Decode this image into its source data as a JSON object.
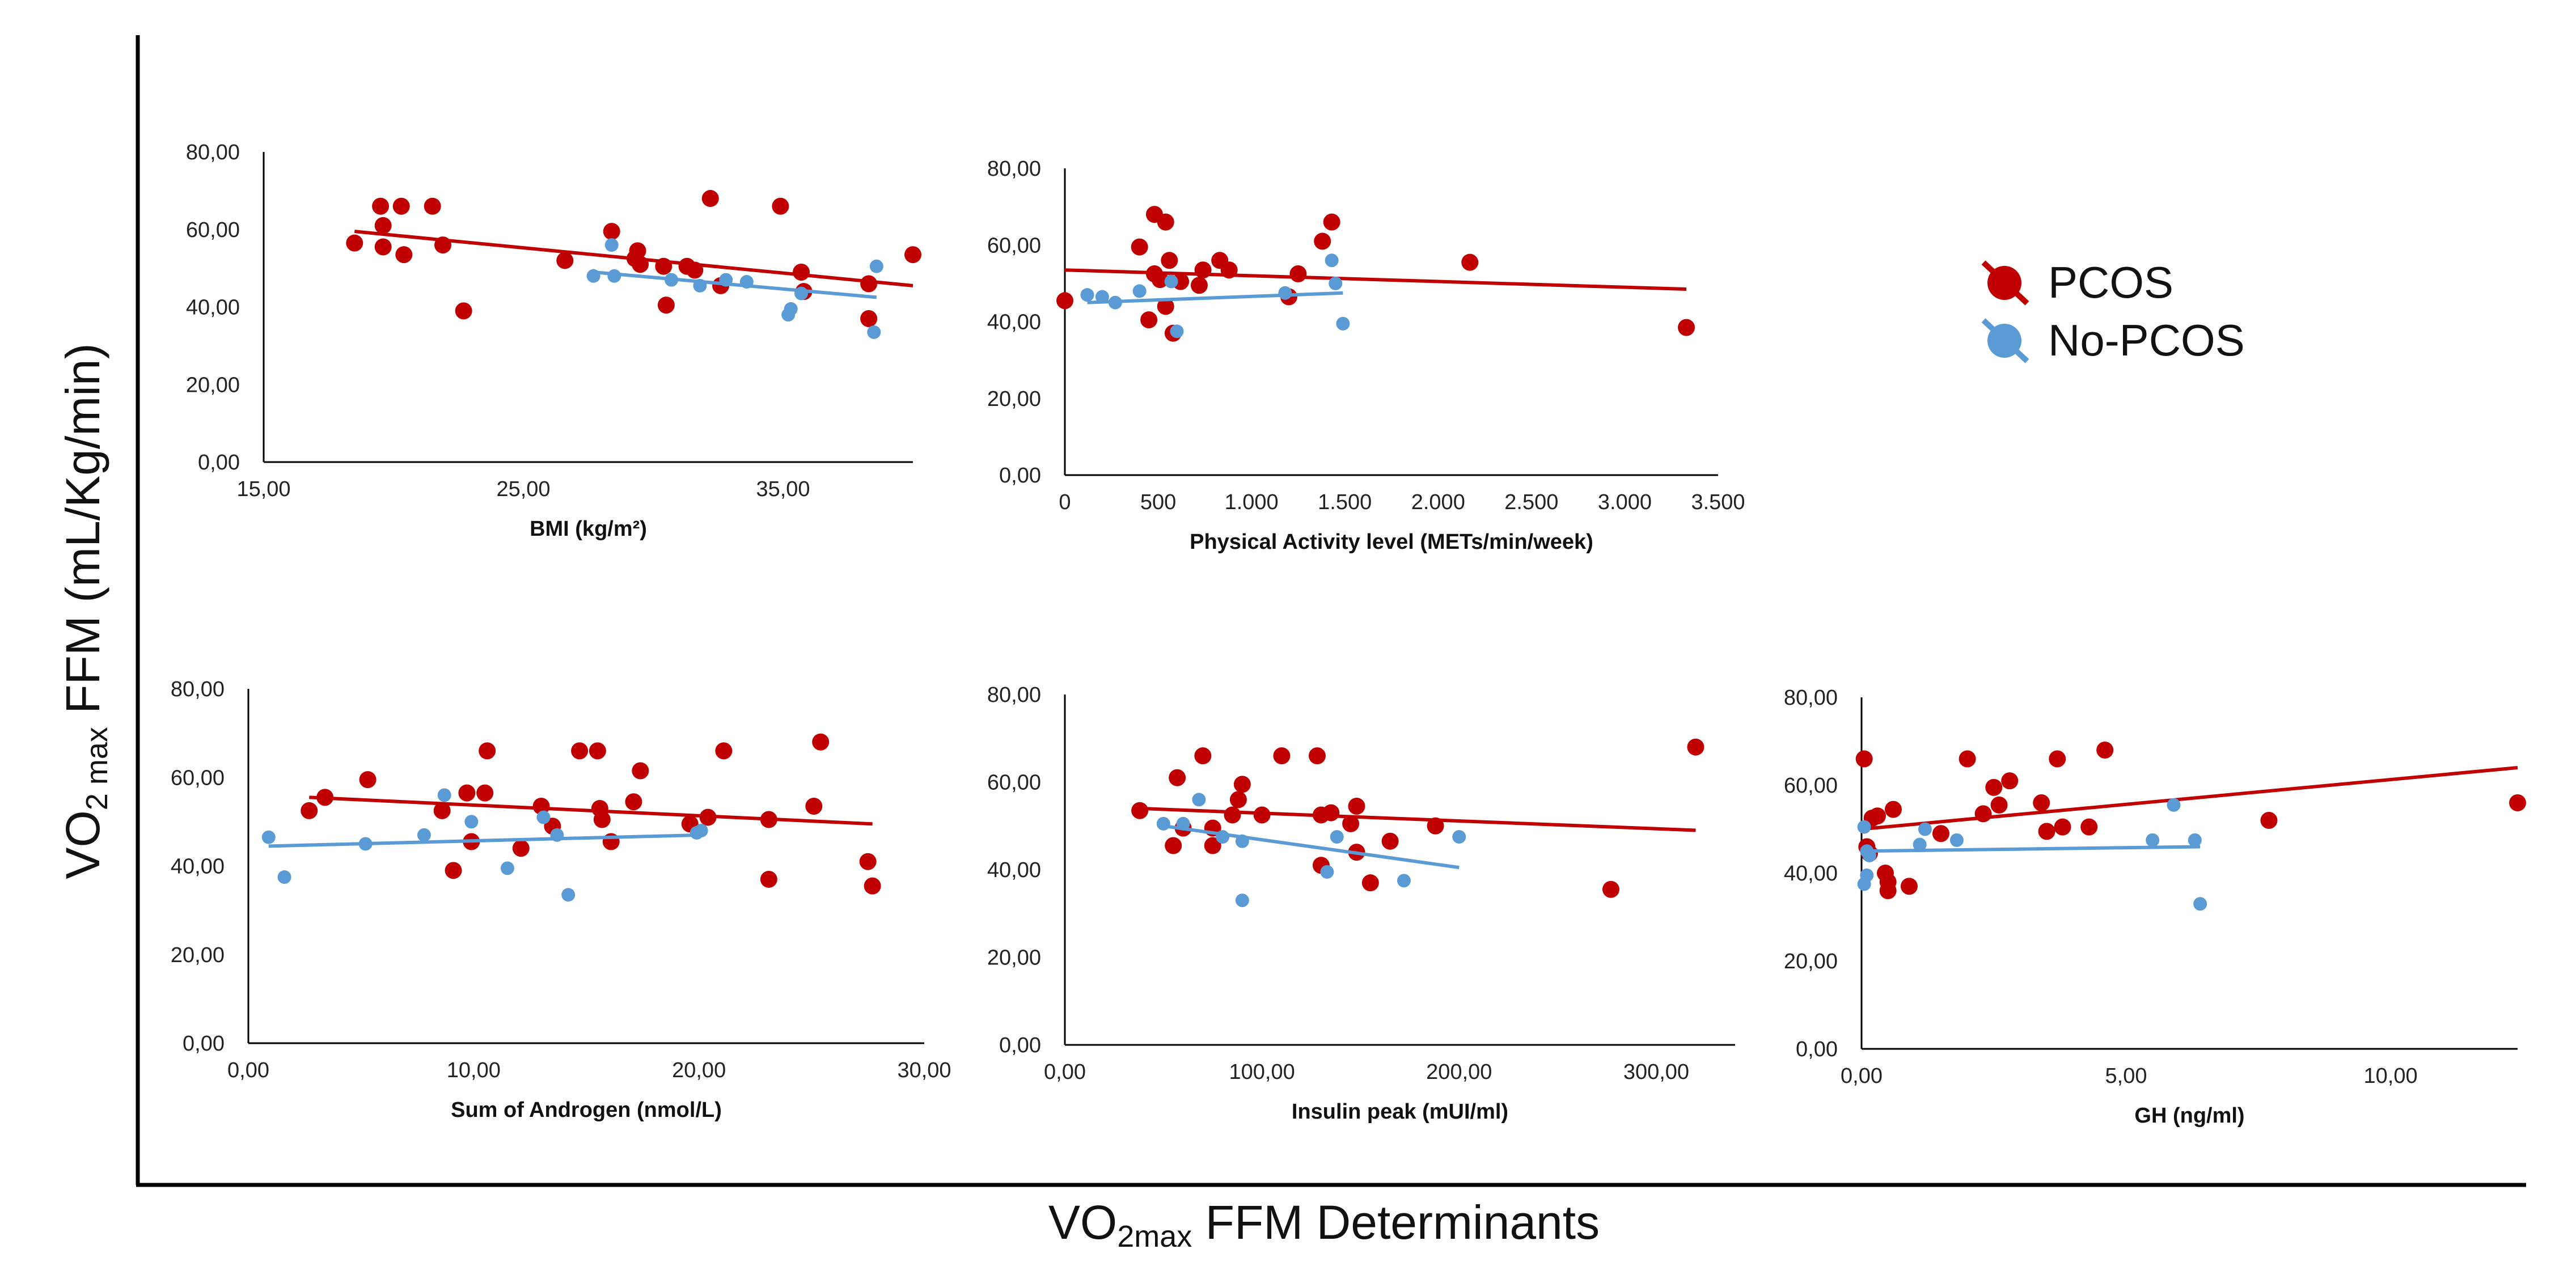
{
  "figure": {
    "y_title_main": "VO",
    "y_title_sub": "2 max",
    "y_title_rest": " FFM (mL/Kg/min)",
    "x_title_main": "VO",
    "x_title_sub": "2max",
    "x_title_rest": " FFM Determinants",
    "colors": {
      "pcos": "#c00000",
      "nopcos": "#5b9bd5",
      "axis": "#000000"
    }
  },
  "legend": {
    "items": [
      {
        "label": "PCOS",
        "color": "#c00000"
      },
      {
        "label": "No-PCOS",
        "color": "#5b9bd5"
      }
    ]
  },
  "chart_data": [
    {
      "type": "scatter",
      "xlabel": "BMI (kg/m²)",
      "xlim": [
        15,
        40
      ],
      "ylim": [
        0,
        80
      ],
      "xticks": [
        "15,00",
        "25,00",
        "35,00"
      ],
      "xtick_values": [
        15,
        25,
        35
      ],
      "yticks": [
        "0,00",
        "20,00",
        "40,00",
        "60,00",
        "80,00"
      ],
      "series": [
        {
          "name": "PCOS",
          "points": [
            [
              18.5,
              56.5
            ],
            [
              19.5,
              66
            ],
            [
              19.6,
              61
            ],
            [
              19.6,
              55.5
            ],
            [
              20.3,
              66
            ],
            [
              20.4,
              53.5
            ],
            [
              21.5,
              66
            ],
            [
              21.9,
              56
            ],
            [
              22.7,
              39
            ],
            [
              26.6,
              52
            ],
            [
              28.4,
              59.5
            ],
            [
              29.3,
              52.5
            ],
            [
              29.4,
              54.5
            ],
            [
              29.5,
              51
            ],
            [
              30.4,
              50.5
            ],
            [
              30.5,
              40.5
            ],
            [
              31.3,
              50.5
            ],
            [
              31.6,
              49.5
            ],
            [
              32.2,
              68
            ],
            [
              32.6,
              45.5
            ],
            [
              34.9,
              66
            ],
            [
              35.7,
              49
            ],
            [
              35.8,
              44
            ],
            [
              38.3,
              46
            ],
            [
              38.3,
              37
            ],
            [
              40.0,
              53.5
            ]
          ],
          "fit": [
            [
              18.5,
              59.5
            ],
            [
              40,
              45.5
            ]
          ]
        },
        {
          "name": "No-PCOS",
          "points": [
            [
              27.7,
              48
            ],
            [
              28.4,
              56
            ],
            [
              28.5,
              48
            ],
            [
              30.7,
              47
            ],
            [
              31.8,
              45.5
            ],
            [
              32.8,
              47
            ],
            [
              33.6,
              46.5
            ],
            [
              35.2,
              38
            ],
            [
              35.3,
              39.5
            ],
            [
              35.7,
              43.5
            ],
            [
              38.6,
              50.5
            ],
            [
              38.5,
              33.5
            ]
          ],
          "fit": [
            [
              27.7,
              49
            ],
            [
              38.6,
              42.5
            ]
          ]
        }
      ]
    },
    {
      "type": "scatter",
      "xlabel": "Physical Activity level (METs/min/week)",
      "xlim": [
        0,
        3500
      ],
      "ylim": [
        0,
        80
      ],
      "xticks": [
        "0",
        "500",
        "1.000",
        "1.500",
        "2.000",
        "2.500",
        "3.000",
        "3.500"
      ],
      "xtick_values": [
        0,
        500,
        1000,
        1500,
        2000,
        2500,
        3000,
        3500
      ],
      "yticks": [
        "0,00",
        "20,00",
        "40,00",
        "60,00",
        "80,00"
      ],
      "series": [
        {
          "name": "PCOS",
          "points": [
            [
              0,
              45.5
            ],
            [
              400,
              59.5
            ],
            [
              450,
              40.5
            ],
            [
              480,
              68
            ],
            [
              480,
              52.5
            ],
            [
              510,
              51
            ],
            [
              540,
              66
            ],
            [
              540,
              44
            ],
            [
              560,
              56
            ],
            [
              580,
              37
            ],
            [
              620,
              50.5
            ],
            [
              720,
              49.5
            ],
            [
              740,
              53.5
            ],
            [
              830,
              56
            ],
            [
              880,
              53.5
            ],
            [
              1200,
              46.5
            ],
            [
              1250,
              52.5
            ],
            [
              1380,
              61
            ],
            [
              1430,
              66
            ],
            [
              2170,
              55.5
            ],
            [
              3330,
              38.5
            ]
          ],
          "fit": [
            [
              0,
              53.5
            ],
            [
              3330,
              48.5
            ]
          ]
        },
        {
          "name": "No-PCOS",
          "points": [
            [
              120,
              47
            ],
            [
              200,
              46.5
            ],
            [
              270,
              45
            ],
            [
              400,
              48
            ],
            [
              570,
              50.5
            ],
            [
              600,
              37.5
            ],
            [
              1180,
              47.5
            ],
            [
              1430,
              56
            ],
            [
              1450,
              50
            ],
            [
              1490,
              39.5
            ]
          ],
          "fit": [
            [
              120,
              45
            ],
            [
              1490,
              47.5
            ]
          ]
        }
      ]
    },
    {
      "type": "scatter",
      "xlabel": "Sum of Androgen (nmol/L)",
      "xlim": [
        0,
        30
      ],
      "ylim": [
        0,
        80
      ],
      "xticks": [
        "0,00",
        "10,00",
        "20,00",
        "30,00"
      ],
      "xtick_values": [
        0,
        10,
        20,
        30
      ],
      "yticks": [
        "0,00",
        "20,00",
        "40,00",
        "60,00",
        "80,00"
      ],
      "series": [
        {
          "name": "PCOS",
          "points": [
            [
              2.7,
              52.5
            ],
            [
              3.4,
              55.5
            ],
            [
              5.3,
              59.5
            ],
            [
              8.6,
              52.5
            ],
            [
              9.1,
              39
            ],
            [
              9.7,
              56.5
            ],
            [
              9.9,
              45.5
            ],
            [
              10.6,
              66
            ],
            [
              10.5,
              56.5
            ],
            [
              12.1,
              44
            ],
            [
              13.0,
              53.5
            ],
            [
              13.5,
              49
            ],
            [
              14.7,
              66
            ],
            [
              15.5,
              66
            ],
            [
              15.6,
              53
            ],
            [
              15.7,
              50.5
            ],
            [
              16.1,
              45.5
            ],
            [
              17.1,
              54.5
            ],
            [
              17.4,
              61.5
            ],
            [
              19.6,
              49.5
            ],
            [
              20.4,
              51
            ],
            [
              21.1,
              66
            ],
            [
              23.1,
              50.5
            ],
            [
              23.1,
              37
            ],
            [
              25.1,
              53.5
            ],
            [
              25.4,
              68
            ],
            [
              27.5,
              41
            ],
            [
              27.7,
              35.5
            ]
          ],
          "fit": [
            [
              2.7,
              55.5
            ],
            [
              27.7,
              49.5
            ]
          ]
        },
        {
          "name": "No-PCOS",
          "points": [
            [
              0.9,
              46.5
            ],
            [
              1.6,
              37.5
            ],
            [
              5.2,
              45
            ],
            [
              7.8,
              47
            ],
            [
              8.7,
              56
            ],
            [
              9.9,
              50
            ],
            [
              11.5,
              39.5
            ],
            [
              13.1,
              51
            ],
            [
              13.7,
              47
            ],
            [
              14.2,
              33.5
            ],
            [
              19.9,
              47.5
            ],
            [
              20.1,
              48
            ]
          ],
          "fit": [
            [
              0.9,
              44.5
            ],
            [
              20.1,
              47
            ]
          ]
        }
      ]
    },
    {
      "type": "scatter",
      "xlabel": "Insulin peak (mUI/ml)",
      "xlim": [
        0,
        340
      ],
      "ylim": [
        0,
        80
      ],
      "xticks": [
        "0,00",
        "100,00",
        "200,00",
        "300,00"
      ],
      "xtick_values": [
        0,
        100,
        200,
        300
      ],
      "yticks": [
        "0,00",
        "20,00",
        "40,00",
        "60,00",
        "80,00"
      ],
      "series": [
        {
          "name": "PCOS",
          "points": [
            [
              38,
              53.5
            ],
            [
              55,
              45.5
            ],
            [
              57,
              61
            ],
            [
              60,
              49.5
            ],
            [
              70,
              66
            ],
            [
              75,
              49.5
            ],
            [
              75,
              45.5
            ],
            [
              85,
              52.5
            ],
            [
              88,
              56
            ],
            [
              90,
              59.5
            ],
            [
              100,
              52.5
            ],
            [
              110,
              66
            ],
            [
              128,
              66
            ],
            [
              130,
              52.5
            ],
            [
              130,
              41
            ],
            [
              135,
              53
            ],
            [
              145,
              50.5
            ],
            [
              148,
              44
            ],
            [
              148,
              54.5
            ],
            [
              155,
              37
            ],
            [
              165,
              46.5
            ],
            [
              188,
              50
            ],
            [
              277,
              35.5
            ],
            [
              320,
              68
            ]
          ],
          "fit": [
            [
              38,
              54
            ],
            [
              320,
              49
            ]
          ]
        },
        {
          "name": "No-PCOS",
          "points": [
            [
              50,
              50.5
            ],
            [
              60,
              50.5
            ],
            [
              68,
              56
            ],
            [
              80,
              47.5
            ],
            [
              90,
              46.5
            ],
            [
              90,
              33
            ],
            [
              133,
              39.5
            ],
            [
              138,
              47.5
            ],
            [
              172,
              37.5
            ],
            [
              200,
              47.5
            ]
          ],
          "fit": [
            [
              50,
              50
            ],
            [
              200,
              40.5
            ]
          ]
        }
      ]
    },
    {
      "type": "scatter",
      "xlabel": "GH (ng/ml)",
      "xlim": [
        0,
        12.4
      ],
      "ylim": [
        0,
        80
      ],
      "xticks": [
        "0,00",
        "5,00",
        "10,00"
      ],
      "xtick_values": [
        0,
        5,
        10
      ],
      "yticks": [
        "0,00",
        "20,00",
        "40,00",
        "60,00",
        "80,00"
      ],
      "series": [
        {
          "name": "PCOS",
          "points": [
            [
              0.05,
              66
            ],
            [
              0.1,
              46
            ],
            [
              0.15,
              44.5
            ],
            [
              0.2,
              52.5
            ],
            [
              0.3,
              53
            ],
            [
              0.45,
              40
            ],
            [
              0.5,
              38
            ],
            [
              0.5,
              36
            ],
            [
              0.6,
              54.5
            ],
            [
              0.9,
              37
            ],
            [
              1.5,
              49
            ],
            [
              2.0,
              66
            ],
            [
              2.3,
              53.5
            ],
            [
              2.5,
              59.5
            ],
            [
              2.6,
              55.5
            ],
            [
              2.8,
              61
            ],
            [
              3.4,
              56
            ],
            [
              3.5,
              49.5
            ],
            [
              3.7,
              66
            ],
            [
              3.8,
              50.5
            ],
            [
              4.3,
              50.5
            ],
            [
              4.6,
              68
            ],
            [
              7.7,
              52
            ],
            [
              12.4,
              56
            ]
          ],
          "fit": [
            [
              0,
              50
            ],
            [
              12.4,
              64
            ]
          ]
        },
        {
          "name": "No-PCOS",
          "points": [
            [
              0.05,
              37.5
            ],
            [
              0.05,
              50.5
            ],
            [
              0.1,
              45
            ],
            [
              0.1,
              39.5
            ],
            [
              0.15,
              44
            ],
            [
              1.1,
              46.5
            ],
            [
              1.2,
              50
            ],
            [
              1.8,
              47.5
            ],
            [
              5.5,
              47.5
            ],
            [
              5.9,
              55.5
            ],
            [
              6.3,
              47.5
            ],
            [
              6.4,
              33
            ]
          ],
          "fit": [
            [
              0,
              45
            ],
            [
              6.4,
              46
            ]
          ]
        }
      ]
    }
  ]
}
